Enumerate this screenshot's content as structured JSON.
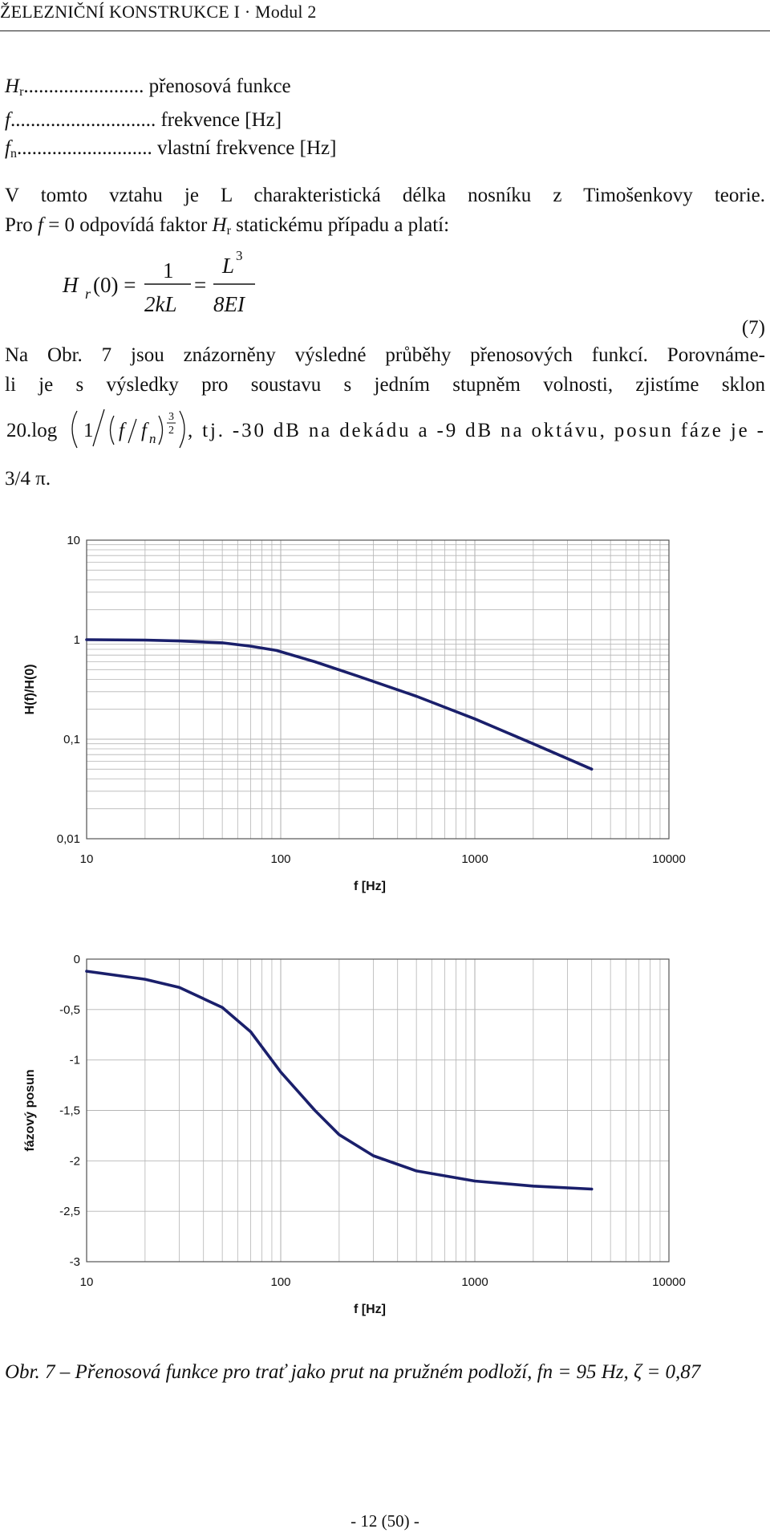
{
  "header": {
    "running_title": "ŽELEZNIČNÍ KONSTRUKCE I · Modul 2"
  },
  "definitions": [
    {
      "symbol": "H",
      "sub": "r",
      "dots": "........................",
      "text": "přenosová funkce"
    },
    {
      "symbol": "f",
      "sub": "",
      "dots": ".............................",
      "text": "frekvence [Hz]"
    },
    {
      "symbol": "f",
      "sub": "n",
      "dots": "...........................",
      "text": "vlastní frekvence [Hz]"
    }
  ],
  "paragraph1": {
    "line1": "V tomto vztahu je L charakteristická délka nosníku z Timošenkovy teorie.",
    "line2_pre": "Pro ",
    "line2_f": "f",
    "line2_mid": " = 0 odpovídá faktor ",
    "line2_H": "H",
    "line2_sub": "r",
    "line2_post": " statickému případu a platí:"
  },
  "equation": {
    "lhs": "H",
    "lhs_sub": "r",
    "arg": "(0) =",
    "frac1_num": "1",
    "frac1_den": "2kL",
    "eq": "=",
    "frac2_num": "L",
    "frac2_sup": "3",
    "frac2_den": "8EI",
    "number": "(7)"
  },
  "paragraph2": {
    "line1": "Na Obr. 7 jsou znázorněny výsledné průběhy přenosových funkcí. Porovnáme-",
    "line2": "li je s výsledky pro soustavu s jedním stupněm volnosti, zjistíme sklon",
    "formula_prefix": "20.log",
    "formula_one": "1",
    "formula_f": "f",
    "formula_fn": "f",
    "formula_fn_sub": "n",
    "formula_exp_num": "3",
    "formula_exp_den": "2",
    "line3_post": ", tj. -30 dB na dekádu a -9 dB na oktávu, posun fáze je -",
    "line4": "3/4 π."
  },
  "chart_data": [
    {
      "type": "line",
      "xscale": "log",
      "yscale": "log",
      "xlim": [
        10,
        10000
      ],
      "ylim": [
        0.01,
        10
      ],
      "x_ticks": [
        "10",
        "100",
        "1000",
        "10000"
      ],
      "y_ticks": [
        "10",
        "1",
        "0,1",
        "0,01"
      ],
      "xlabel": "f [Hz]",
      "ylabel": "H(f)/H(0)",
      "grid": true,
      "line_color": "#1a1f6b",
      "series": [
        {
          "x": [
            10,
            20,
            30,
            50,
            70,
            95,
            150,
            250,
            500,
            1000,
            2000,
            4000
          ],
          "y": [
            1.0,
            0.99,
            0.97,
            0.93,
            0.86,
            0.78,
            0.6,
            0.43,
            0.27,
            0.16,
            0.09,
            0.05
          ]
        }
      ]
    },
    {
      "type": "line",
      "xscale": "log",
      "xlim": [
        10,
        10000
      ],
      "ylim": [
        -3,
        0
      ],
      "x_ticks": [
        "10",
        "100",
        "1000",
        "10000"
      ],
      "y_ticks": [
        "0",
        "-0,5",
        "-1",
        "-1,5",
        "-2",
        "-2,5",
        "-3"
      ],
      "xlabel": "f [Hz]",
      "ylabel": "fázový posun",
      "grid": true,
      "line_color": "#1a1f6b",
      "series": [
        {
          "x": [
            10,
            20,
            30,
            50,
            70,
            100,
            150,
            200,
            300,
            500,
            1000,
            2000,
            4000
          ],
          "y": [
            -0.12,
            -0.2,
            -0.28,
            -0.48,
            -0.72,
            -1.12,
            -1.5,
            -1.74,
            -1.95,
            -2.1,
            -2.2,
            -2.25,
            -2.28
          ]
        }
      ]
    }
  ],
  "caption": "Obr. 7 – Přenosová funkce pro trať jako prut na pružném podloží, fn = 95 Hz, ζ = 0,87",
  "footer": {
    "page": "- 12 (50) -"
  }
}
